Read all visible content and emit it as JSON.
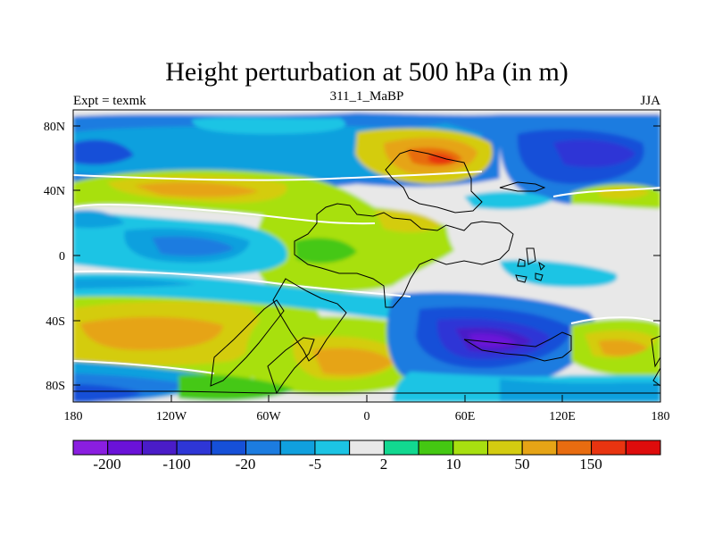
{
  "title": "Height perturbation at 500 hPa (in m)",
  "left_label": "Expt = texmk",
  "center_label": "311_1_MaBP",
  "right_label": "JJA",
  "y_ticks": [
    "80N",
    "40N",
    "0",
    "40S",
    "80S"
  ],
  "x_ticks": [
    "180",
    "120W",
    "60W",
    "0",
    "60E",
    "120E",
    "180"
  ],
  "colorbar": {
    "colors": [
      "#8a1ee0",
      "#6a12d8",
      "#4a1cc8",
      "#2e36d6",
      "#1650d8",
      "#1c7ce0",
      "#10a0de",
      "#1cc4e4",
      "#e8e8e8",
      "#12d890",
      "#44c812",
      "#a8e010",
      "#d4cc10",
      "#e6a416",
      "#e86c10",
      "#e83410",
      "#de0c0c"
    ],
    "labels": [
      "-200",
      "-100",
      "-20",
      "-5",
      "2",
      "10",
      "50",
      "150"
    ]
  }
}
